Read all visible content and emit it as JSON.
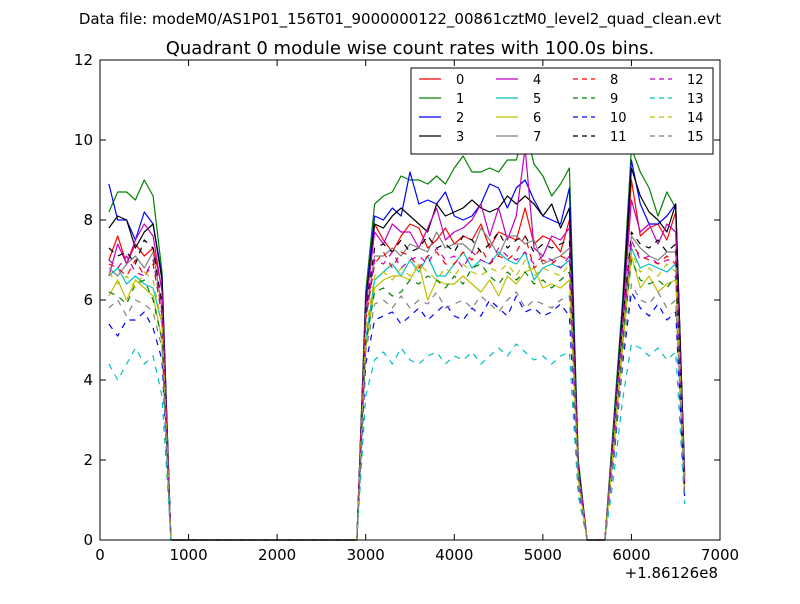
{
  "suptitle": "Data file: modeM0/AS1P01_156T01_9000000122_00861cztM0_level2_quad_clean.evt",
  "chart_data": {
    "type": "line",
    "title": "Quadrant 0 module wise count rates with 100.0s bins.",
    "xlabel": "",
    "ylabel": "",
    "x_offset_label": "+1.86126e8",
    "xlim": [
      0,
      7000
    ],
    "ylim": [
      0,
      12
    ],
    "xticks": [
      "0",
      "1000",
      "2000",
      "3000",
      "4000",
      "5000",
      "6000",
      "7000"
    ],
    "yticks": [
      "0",
      "2",
      "4",
      "6",
      "8",
      "10",
      "12"
    ],
    "grid": false,
    "legend_position": "top-right",
    "legend_columns": 4,
    "x": [
      100,
      200,
      300,
      400,
      500,
      600,
      700,
      800,
      900,
      1000,
      1100,
      1200,
      1300,
      1400,
      1500,
      1600,
      1700,
      1800,
      1900,
      2000,
      2100,
      2200,
      2300,
      2400,
      2500,
      2600,
      2700,
      2800,
      2900,
      3000,
      3100,
      3200,
      3300,
      3400,
      3500,
      3600,
      3700,
      3800,
      3900,
      4000,
      4100,
      4200,
      4300,
      4400,
      4500,
      4600,
      4700,
      4800,
      4900,
      5000,
      5100,
      5200,
      5300,
      5400,
      5500,
      5600,
      5700,
      5800,
      5900,
      6000,
      6100,
      6200,
      6300,
      6400,
      6500,
      6600
    ],
    "series": [
      {
        "name": "0",
        "color": "#ff0000",
        "dash": false,
        "values": [
          7.0,
          7.6,
          6.9,
          7.4,
          7.1,
          7.3,
          6.3,
          0,
          0,
          0,
          0,
          0,
          0,
          0,
          0,
          0,
          0,
          0,
          0,
          0,
          0,
          0,
          0,
          0,
          0,
          0,
          0,
          0,
          0,
          6.0,
          7.9,
          7.5,
          7.2,
          7.6,
          7.9,
          7.8,
          7.3,
          7.5,
          7.8,
          7.4,
          7.6,
          7.5,
          7.9,
          7.3,
          7.7,
          7.6,
          7.5,
          8.3,
          7.4,
          7.6,
          7.5,
          7.2,
          8.0,
          1.8,
          0,
          0,
          0,
          2.5,
          5.5,
          9.0,
          7.6,
          7.8,
          7.9,
          7.5,
          8.2,
          1.5
        ]
      },
      {
        "name": "1",
        "color": "#008000",
        "dash": false,
        "values": [
          8.2,
          8.7,
          8.7,
          8.5,
          9.0,
          8.6,
          6.7,
          0,
          0,
          0,
          0,
          0,
          0,
          0,
          0,
          0,
          0,
          0,
          0,
          0,
          0,
          0,
          0,
          0,
          0,
          0,
          0,
          0,
          0,
          6.2,
          8.4,
          8.6,
          8.7,
          9.1,
          9.0,
          9.0,
          8.9,
          9.1,
          8.9,
          9.3,
          9.6,
          9.2,
          9.2,
          9.3,
          9.2,
          9.5,
          9.5,
          10.3,
          9.4,
          9.1,
          8.6,
          8.9,
          9.3,
          2.0,
          0,
          0,
          0,
          3.0,
          6.0,
          9.8,
          9.2,
          8.8,
          8.1,
          8.7,
          8.3,
          1.7
        ]
      },
      {
        "name": "2",
        "color": "#0000ff",
        "dash": false,
        "values": [
          8.9,
          8.0,
          8.0,
          7.5,
          8.2,
          7.9,
          6.6,
          0,
          0,
          0,
          0,
          0,
          0,
          0,
          0,
          0,
          0,
          0,
          0,
          0,
          0,
          0,
          0,
          0,
          0,
          0,
          0,
          0,
          0,
          6.0,
          8.1,
          8.0,
          8.3,
          8.1,
          9.2,
          8.4,
          8.5,
          8.4,
          8.7,
          8.1,
          8.0,
          8.1,
          8.4,
          8.9,
          8.8,
          8.3,
          8.8,
          9.0,
          8.5,
          8.1,
          8.0,
          7.9,
          8.8,
          1.9,
          0,
          0,
          0,
          2.8,
          5.8,
          9.5,
          8.4,
          7.9,
          7.9,
          8.1,
          8.4,
          1.6
        ]
      },
      {
        "name": "3",
        "color": "#000000",
        "dash": false,
        "values": [
          7.8,
          8.1,
          8.0,
          7.3,
          7.7,
          7.9,
          6.5,
          0,
          0,
          0,
          0,
          0,
          0,
          0,
          0,
          0,
          0,
          0,
          0,
          0,
          0,
          0,
          0,
          0,
          0,
          0,
          0,
          0,
          0,
          5.9,
          7.9,
          7.8,
          8.1,
          8.3,
          8.1,
          7.9,
          7.7,
          8.4,
          8.1,
          8.2,
          8.3,
          8.5,
          8.3,
          8.2,
          8.3,
          8.6,
          8.4,
          8.6,
          8.4,
          8.1,
          8.4,
          7.8,
          8.3,
          1.8,
          0,
          0,
          0,
          2.7,
          5.7,
          9.3,
          8.6,
          8.2,
          8.0,
          7.7,
          8.4,
          1.6
        ]
      },
      {
        "name": "4",
        "color": "#bf00bf",
        "dash": false,
        "values": [
          6.6,
          7.4,
          6.9,
          7.5,
          7.9,
          7.6,
          6.2,
          0,
          0,
          0,
          0,
          0,
          0,
          0,
          0,
          0,
          0,
          0,
          0,
          0,
          0,
          0,
          0,
          0,
          0,
          0,
          0,
          0,
          0,
          5.8,
          7.7,
          7.4,
          7.9,
          7.7,
          7.7,
          7.3,
          7.8,
          8.3,
          7.5,
          7.7,
          7.8,
          8.0,
          8.4,
          7.6,
          8.3,
          7.5,
          8.1,
          9.8,
          7.3,
          7.1,
          7.6,
          7.5,
          7.8,
          1.8,
          0,
          0,
          0,
          2.7,
          5.5,
          8.5,
          7.7,
          7.9,
          7.4,
          7.9,
          7.7,
          1.5
        ]
      },
      {
        "name": "5",
        "color": "#00bfbf",
        "dash": false,
        "values": [
          6.6,
          6.8,
          6.4,
          6.6,
          6.4,
          6.3,
          5.4,
          0,
          0,
          0,
          0,
          0,
          0,
          0,
          0,
          0,
          0,
          0,
          0,
          0,
          0,
          0,
          0,
          0,
          0,
          0,
          0,
          0,
          0,
          5.0,
          6.5,
          6.7,
          6.9,
          6.6,
          7.0,
          6.7,
          7.1,
          6.6,
          6.6,
          6.9,
          7.2,
          6.8,
          7.0,
          6.9,
          7.2,
          7.0,
          6.9,
          7.2,
          6.5,
          6.8,
          6.9,
          6.8,
          7.0,
          1.6,
          0,
          0,
          0,
          2.4,
          5.0,
          7.3,
          6.8,
          6.9,
          6.8,
          6.7,
          6.9,
          1.3
        ]
      },
      {
        "name": "6",
        "color": "#bfbf00",
        "dash": false,
        "values": [
          6.1,
          6.5,
          6.0,
          6.5,
          6.3,
          6.1,
          5.0,
          0,
          0,
          0,
          0,
          0,
          0,
          0,
          0,
          0,
          0,
          0,
          0,
          0,
          0,
          0,
          0,
          0,
          0,
          0,
          0,
          0,
          0,
          4.8,
          6.3,
          6.5,
          6.6,
          6.6,
          6.5,
          6.9,
          6.0,
          6.5,
          6.4,
          6.4,
          6.6,
          6.4,
          6.2,
          6.5,
          6.1,
          6.6,
          6.4,
          6.7,
          6.8,
          6.3,
          6.4,
          6.3,
          6.5,
          1.5,
          0,
          0,
          0,
          2.2,
          4.8,
          7.1,
          6.3,
          6.6,
          6.2,
          6.4,
          6.5,
          1.2
        ]
      },
      {
        "name": "7",
        "color": "#808080",
        "dash": false,
        "values": [
          6.8,
          6.6,
          6.9,
          7.1,
          6.8,
          7.2,
          5.8,
          0,
          0,
          0,
          0,
          0,
          0,
          0,
          0,
          0,
          0,
          0,
          0,
          0,
          0,
          0,
          0,
          0,
          0,
          0,
          0,
          0,
          0,
          5.6,
          7.1,
          7.1,
          7.3,
          7.1,
          7.4,
          7.3,
          7.2,
          7.7,
          7.3,
          7.4,
          7.4,
          7.2,
          7.8,
          7.5,
          7.1,
          7.6,
          7.6,
          7.4,
          7.5,
          6.9,
          7.0,
          7.1,
          7.3,
          1.7,
          0,
          0,
          0,
          2.6,
          5.3,
          7.6,
          7.3,
          7.1,
          7.0,
          7.2,
          7.2,
          1.4
        ]
      },
      {
        "name": "8",
        "color": "#ff0000",
        "dash": true,
        "values": [
          6.9,
          6.8,
          6.6,
          7.0,
          6.6,
          6.9,
          5.6,
          0,
          0,
          0,
          0,
          0,
          0,
          0,
          0,
          0,
          0,
          0,
          0,
          0,
          0,
          0,
          0,
          0,
          0,
          0,
          0,
          0,
          0,
          5.5,
          6.9,
          7.2,
          6.8,
          7.2,
          7.1,
          6.8,
          7.1,
          7.2,
          6.9,
          6.9,
          7.2,
          7.0,
          7.3,
          6.9,
          7.1,
          7.0,
          7.2,
          7.6,
          6.8,
          7.0,
          6.9,
          7.1,
          7.0,
          1.7,
          0,
          0,
          0,
          2.5,
          5.2,
          7.4,
          7.1,
          7.0,
          6.9,
          7.1,
          6.9,
          1.4
        ]
      },
      {
        "name": "9",
        "color": "#008000",
        "dash": true,
        "values": [
          6.2,
          6.1,
          5.9,
          6.4,
          6.5,
          6.0,
          5.0,
          0,
          0,
          0,
          0,
          0,
          0,
          0,
          0,
          0,
          0,
          0,
          0,
          0,
          0,
          0,
          0,
          0,
          0,
          0,
          0,
          0,
          0,
          4.9,
          6.2,
          6.3,
          6.1,
          6.2,
          6.5,
          6.4,
          6.6,
          6.5,
          6.3,
          6.6,
          6.4,
          6.8,
          6.9,
          6.6,
          6.4,
          6.7,
          6.5,
          6.7,
          6.4,
          6.5,
          6.3,
          6.5,
          6.7,
          1.5,
          0,
          0,
          0,
          2.3,
          4.9,
          7.0,
          6.5,
          6.4,
          6.5,
          6.3,
          6.6,
          1.3
        ]
      },
      {
        "name": "10",
        "color": "#0000ff",
        "dash": true,
        "values": [
          5.4,
          5.1,
          5.5,
          5.5,
          5.7,
          5.3,
          4.5,
          0,
          0,
          0,
          0,
          0,
          0,
          0,
          0,
          0,
          0,
          0,
          0,
          0,
          0,
          0,
          0,
          0,
          0,
          0,
          0,
          0,
          0,
          4.4,
          5.5,
          5.6,
          5.7,
          5.4,
          5.6,
          5.8,
          5.5,
          5.7,
          5.9,
          5.6,
          5.5,
          5.8,
          5.6,
          6.0,
          5.8,
          5.6,
          6.1,
          5.7,
          5.8,
          5.6,
          5.7,
          5.9,
          5.6,
          1.3,
          0,
          0,
          0,
          2.0,
          4.4,
          6.2,
          5.8,
          5.6,
          5.9,
          5.5,
          5.7,
          1.1
        ]
      },
      {
        "name": "11",
        "color": "#000000",
        "dash": true,
        "values": [
          7.3,
          7.1,
          7.2,
          6.9,
          7.5,
          7.3,
          5.9,
          0,
          0,
          0,
          0,
          0,
          0,
          0,
          0,
          0,
          0,
          0,
          0,
          0,
          0,
          0,
          0,
          0,
          0,
          0,
          0,
          0,
          0,
          5.7,
          7.3,
          7.4,
          7.2,
          7.5,
          7.2,
          7.3,
          7.6,
          7.3,
          7.4,
          7.2,
          7.6,
          7.5,
          7.2,
          7.4,
          7.7,
          7.3,
          7.5,
          7.6,
          7.2,
          7.4,
          7.3,
          7.4,
          7.5,
          1.8,
          0,
          0,
          0,
          2.6,
          5.4,
          7.7,
          7.4,
          7.3,
          7.5,
          7.2,
          7.4,
          1.4
        ]
      },
      {
        "name": "12",
        "color": "#bf00bf",
        "dash": true,
        "values": [
          7.0,
          6.8,
          7.1,
          6.7,
          6.6,
          7.0,
          5.7,
          0,
          0,
          0,
          0,
          0,
          0,
          0,
          0,
          0,
          0,
          0,
          0,
          0,
          0,
          0,
          0,
          0,
          0,
          0,
          0,
          0,
          0,
          5.5,
          7.0,
          6.9,
          7.2,
          6.8,
          7.0,
          7.1,
          6.9,
          7.3,
          7.0,
          7.1,
          6.8,
          7.2,
          7.0,
          6.9,
          7.3,
          7.1,
          7.0,
          7.2,
          6.9,
          7.1,
          7.0,
          6.8,
          7.1,
          1.7,
          0,
          0,
          0,
          2.5,
          5.3,
          7.5,
          7.0,
          7.1,
          6.9,
          7.0,
          7.0,
          1.4
        ]
      },
      {
        "name": "13",
        "color": "#00bfbf",
        "dash": true,
        "values": [
          4.4,
          4.0,
          4.4,
          4.8,
          4.4,
          4.6,
          3.6,
          0,
          0,
          0,
          0,
          0,
          0,
          0,
          0,
          0,
          0,
          0,
          0,
          0,
          0,
          0,
          0,
          0,
          0,
          0,
          0,
          0,
          0,
          3.6,
          4.5,
          4.7,
          4.4,
          4.8,
          4.5,
          4.4,
          4.6,
          4.7,
          4.4,
          4.6,
          4.5,
          4.7,
          4.4,
          4.6,
          4.8,
          4.6,
          4.9,
          4.7,
          4.5,
          4.6,
          4.4,
          4.6,
          4.7,
          1.1,
          0,
          0,
          0,
          1.6,
          3.5,
          4.9,
          4.8,
          4.6,
          4.8,
          4.5,
          4.7,
          0.9
        ]
      },
      {
        "name": "14",
        "color": "#bfbf00",
        "dash": true,
        "values": [
          6.7,
          6.4,
          6.6,
          6.3,
          6.7,
          6.5,
          5.4,
          0,
          0,
          0,
          0,
          0,
          0,
          0,
          0,
          0,
          0,
          0,
          0,
          0,
          0,
          0,
          0,
          0,
          0,
          0,
          0,
          0,
          0,
          5.2,
          6.6,
          6.7,
          6.5,
          6.8,
          6.6,
          6.9,
          6.7,
          6.5,
          6.8,
          6.6,
          6.9,
          6.7,
          6.6,
          6.8,
          6.7,
          6.9,
          6.6,
          7.0,
          6.6,
          6.8,
          6.7,
          6.6,
          6.9,
          1.6,
          0,
          0,
          0,
          2.4,
          5.1,
          7.2,
          6.7,
          6.8,
          6.6,
          6.9,
          6.7,
          1.3
        ]
      },
      {
        "name": "15",
        "color": "#808080",
        "dash": true,
        "values": [
          5.8,
          6.0,
          5.6,
          6.0,
          5.9,
          5.7,
          4.8,
          0,
          0,
          0,
          0,
          0,
          0,
          0,
          0,
          0,
          0,
          0,
          0,
          0,
          0,
          0,
          0,
          0,
          0,
          0,
          0,
          0,
          0,
          4.7,
          5.9,
          6.0,
          5.8,
          6.1,
          5.8,
          6.0,
          5.9,
          6.2,
          5.8,
          5.9,
          6.0,
          5.8,
          6.1,
          5.9,
          5.7,
          6.0,
          6.2,
          5.8,
          6.0,
          5.9,
          5.8,
          6.0,
          6.1,
          1.4,
          0,
          0,
          0,
          2.1,
          4.6,
          6.4,
          6.0,
          5.9,
          6.2,
          5.8,
          6.0,
          1.2
        ]
      }
    ]
  }
}
